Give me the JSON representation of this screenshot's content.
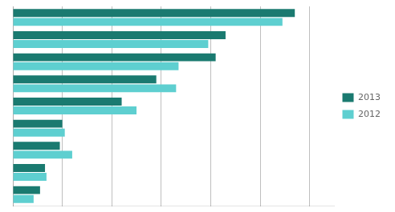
{
  "chart_data": {
    "type": "bar",
    "orientation": "horizontal",
    "categories": [
      null,
      null,
      null,
      null,
      null,
      null,
      null,
      null,
      null
    ],
    "series": [
      {
        "name": "2013",
        "color": "#1a7a70",
        "values": [
          570,
          430,
          410,
          290,
          220,
          100,
          95,
          65,
          55
        ]
      },
      {
        "name": "2012",
        "color": "#5ecfd0",
        "values": [
          545,
          395,
          335,
          330,
          250,
          105,
          120,
          68,
          42
        ]
      }
    ],
    "xlim": [
      0,
      650
    ],
    "xticks": [
      0,
      100,
      200,
      300,
      400,
      500,
      600
    ],
    "grid": true,
    "legend": "right",
    "tick_labels": false
  }
}
